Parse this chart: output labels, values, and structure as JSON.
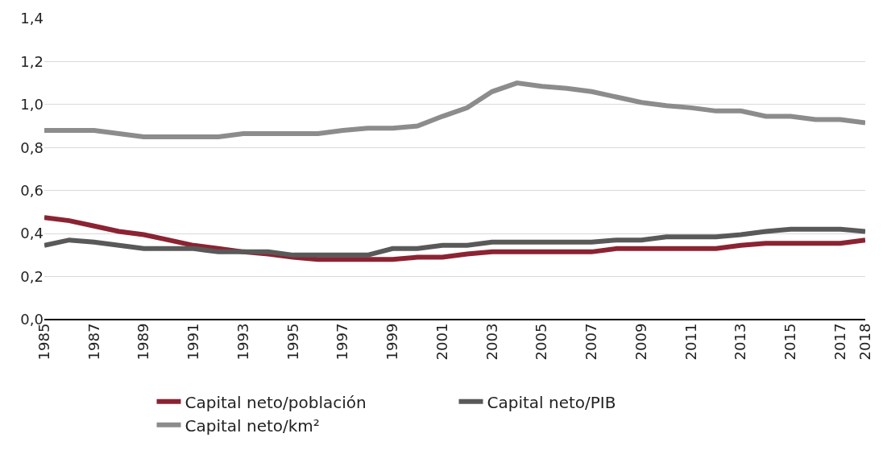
{
  "chart_data": {
    "type": "line",
    "x": [
      1985,
      1986,
      1987,
      1988,
      1989,
      1990,
      1991,
      1992,
      1993,
      1994,
      1995,
      1996,
      1997,
      1998,
      1999,
      2000,
      2001,
      2002,
      2003,
      2004,
      2005,
      2006,
      2007,
      2008,
      2009,
      2010,
      2011,
      2012,
      2013,
      2014,
      2015,
      2016,
      2017,
      2018
    ],
    "series": [
      {
        "name": "Capital neto/población",
        "color": "#8b2332",
        "values": [
          0.475,
          0.46,
          0.435,
          0.41,
          0.395,
          0.37,
          0.345,
          0.33,
          0.315,
          0.305,
          0.29,
          0.28,
          0.28,
          0.28,
          0.28,
          0.29,
          0.29,
          0.305,
          0.315,
          0.315,
          0.315,
          0.315,
          0.315,
          0.33,
          0.33,
          0.33,
          0.33,
          0.33,
          0.345,
          0.355,
          0.355,
          0.355,
          0.355,
          0.37
        ]
      },
      {
        "name": "Capital neto/PIB",
        "color": "#595959",
        "values": [
          0.345,
          0.37,
          0.36,
          0.345,
          0.33,
          0.33,
          0.33,
          0.315,
          0.315,
          0.315,
          0.3,
          0.3,
          0.3,
          0.3,
          0.33,
          0.33,
          0.345,
          0.345,
          0.36,
          0.36,
          0.36,
          0.36,
          0.36,
          0.37,
          0.37,
          0.385,
          0.385,
          0.385,
          0.395,
          0.41,
          0.42,
          0.42,
          0.42,
          0.41
        ]
      },
      {
        "name": "Capital neto/km²",
        "color": "#8c8c8c",
        "values": [
          0.88,
          0.88,
          0.88,
          0.865,
          0.85,
          0.85,
          0.85,
          0.85,
          0.865,
          0.865,
          0.865,
          0.865,
          0.88,
          0.89,
          0.89,
          0.9,
          0.945,
          0.985,
          1.06,
          1.1,
          1.085,
          1.075,
          1.06,
          1.035,
          1.01,
          0.995,
          0.985,
          0.97,
          0.97,
          0.945,
          0.945,
          0.93,
          0.93,
          0.915
        ]
      }
    ],
    "xlim": [
      1985,
      2018
    ],
    "xticks": [
      1985,
      1987,
      1989,
      1991,
      1993,
      1995,
      1997,
      1999,
      2001,
      2003,
      2005,
      2007,
      2009,
      2011,
      2013,
      2015,
      2017,
      2018
    ],
    "ylim": [
      0,
      1.4
    ],
    "yticks": [
      {
        "value": 0,
        "label": "0,0"
      },
      {
        "value": 0.2,
        "label": "0,2"
      },
      {
        "value": 0.4,
        "label": "0,4"
      },
      {
        "value": 0.6,
        "label": "0,6"
      },
      {
        "value": 0.8,
        "label": "0,8"
      },
      {
        "value": 1.0,
        "label": "1,0"
      },
      {
        "value": 1.2,
        "label": "1,2"
      },
      {
        "value": 1.4,
        "label": "1,4"
      }
    ],
    "grid": "y",
    "legend": "bottom",
    "marker": "none",
    "line_style": "solid"
  }
}
